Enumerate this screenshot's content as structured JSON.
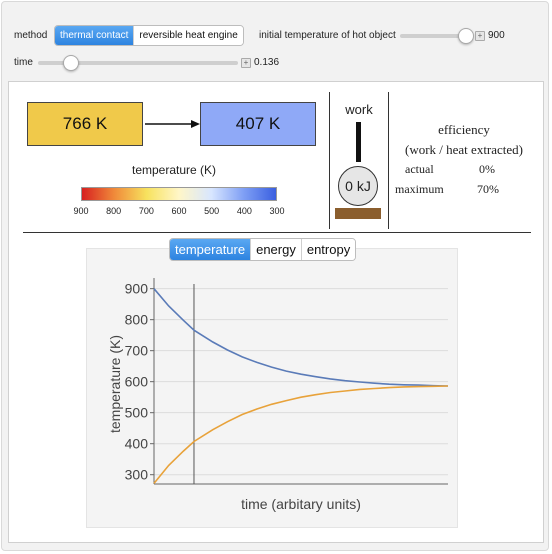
{
  "controls": {
    "method_label": "method",
    "method_options": [
      "thermal contact",
      "reversible heat engine"
    ],
    "method_selected": "thermal contact",
    "initial_temp_label": "initial temperature of hot object",
    "initial_temp_value": "900",
    "time_label": "time",
    "time_value": "0.136"
  },
  "diagram": {
    "hot_temp": "766 K",
    "cold_temp": "407 K",
    "hot_color": "#f0c94a",
    "cold_color": "#8fa9f7",
    "scale_label": "temperature (K)",
    "scale_ticks": [
      "900",
      "800",
      "700",
      "600",
      "500",
      "400",
      "300"
    ],
    "work_label": "work",
    "work_value": "0 kJ"
  },
  "efficiency": {
    "title": "efficiency",
    "subtitle": "(work / heat extracted)",
    "actual_label": "actual",
    "actual_value": "0%",
    "maximum_label": "maximum",
    "maximum_value": "70%"
  },
  "plot_tabs": {
    "options": [
      "temperature",
      "energy",
      "entropy"
    ],
    "selected": "temperature"
  },
  "chart_data": {
    "type": "line",
    "xlabel": "time (arbitary units)",
    "ylabel": "temperature (K)",
    "ylim": [
      270,
      915
    ],
    "xlim": [
      0,
      1
    ],
    "yticks": [
      300,
      400,
      500,
      600,
      700,
      800,
      900
    ],
    "ytick_labels": [
      "300",
      "400",
      "500",
      "600",
      "700",
      "800",
      "900"
    ],
    "grid": true,
    "series": [
      {
        "color": "#5a7bb8",
        "x": [
          0,
          0.05,
          0.1,
          0.136,
          0.2,
          0.25,
          0.3,
          0.35,
          0.4,
          0.45,
          0.5,
          0.55,
          0.6,
          0.65,
          0.7,
          0.75,
          0.8,
          0.85,
          0.9,
          0.95,
          1.0
        ],
        "y": [
          900,
          844,
          798,
          766,
          728,
          702,
          680,
          662,
          647,
          634,
          624,
          616,
          609,
          603,
          599,
          595,
          592,
          590,
          589,
          587,
          586
        ]
      },
      {
        "color": "#e8a23a",
        "x": [
          0,
          0.05,
          0.1,
          0.136,
          0.2,
          0.25,
          0.3,
          0.35,
          0.4,
          0.45,
          0.5,
          0.55,
          0.6,
          0.65,
          0.7,
          0.75,
          0.8,
          0.85,
          0.9,
          0.95,
          1.0
        ],
        "y": [
          272,
          330,
          376,
          407,
          445,
          471,
          494,
          512,
          527,
          539,
          550,
          558,
          565,
          570,
          575,
          578,
          581,
          583,
          584,
          585,
          586
        ]
      }
    ],
    "marker_x": 0.136
  }
}
